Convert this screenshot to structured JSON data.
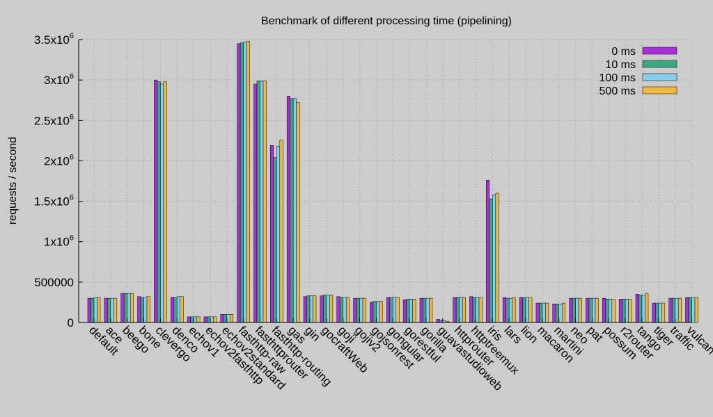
{
  "chart_data": {
    "type": "bar",
    "title": "Benchmark of different processing time (pipelining)",
    "xlabel": "",
    "ylabel": "requests / second",
    "ylim": [
      0,
      3500000
    ],
    "grid": true,
    "legend_position": "top-right",
    "yticks": [
      {
        "value": 0,
        "label": "0",
        "exp": ""
      },
      {
        "value": 500000,
        "label": "500000",
        "exp": ""
      },
      {
        "value": 1000000,
        "label": "1x10",
        "exp": "6"
      },
      {
        "value": 1500000,
        "label": "1.5x10",
        "exp": "6"
      },
      {
        "value": 2000000,
        "label": "2x10",
        "exp": "6"
      },
      {
        "value": 2500000,
        "label": "2.5x10",
        "exp": "6"
      },
      {
        "value": 3000000,
        "label": "3x10",
        "exp": "6"
      },
      {
        "value": 3500000,
        "label": "3.5x10",
        "exp": "6"
      }
    ],
    "categories": [
      "default",
      "ace",
      "beego",
      "bone",
      "clevergo",
      "denco",
      "echov1",
      "echov2fasthttp",
      "echov2standard",
      "fasthttp-raw",
      "fasthttprouter",
      "fasthttp-routing",
      "gas",
      "gin",
      "gocraftWeb",
      "goji",
      "gojiv2",
      "gojsonrest",
      "gongular",
      "gorestful",
      "gorilla",
      "guavastudioweb",
      "httprouter",
      "httptreemux",
      "iris",
      "lars",
      "lion",
      "macaron",
      "martini",
      "neo",
      "pat",
      "possum",
      "r2router",
      "tango",
      "tiger",
      "traffic",
      "vulcan"
    ],
    "series": [
      {
        "name": "0 ms",
        "color": "#a830d8",
        "values": [
          300000,
          300000,
          360000,
          320000,
          3000000,
          310000,
          70000,
          70000,
          100000,
          3450000,
          2950000,
          2190000,
          2800000,
          320000,
          330000,
          320000,
          300000,
          250000,
          310000,
          280000,
          300000,
          40000,
          310000,
          320000,
          1760000,
          310000,
          310000,
          240000,
          230000,
          300000,
          300000,
          300000,
          290000,
          350000,
          240000,
          300000,
          310000
        ]
      },
      {
        "name": "10 ms",
        "color": "#3aa882",
        "values": [
          300000,
          300000,
          360000,
          310000,
          2980000,
          310000,
          70000,
          70000,
          100000,
          3460000,
          2990000,
          2040000,
          2770000,
          330000,
          340000,
          310000,
          300000,
          260000,
          310000,
          290000,
          300000,
          25000,
          310000,
          310000,
          1530000,
          300000,
          310000,
          240000,
          230000,
          300000,
          300000,
          290000,
          290000,
          340000,
          240000,
          300000,
          310000
        ]
      },
      {
        "name": "100 ms",
        "color": "#88ccee",
        "values": [
          310000,
          300000,
          360000,
          310000,
          2950000,
          320000,
          70000,
          70000,
          100000,
          3470000,
          2990000,
          2180000,
          2770000,
          330000,
          340000,
          310000,
          300000,
          260000,
          310000,
          290000,
          300000,
          20000,
          310000,
          310000,
          1580000,
          300000,
          310000,
          240000,
          230000,
          300000,
          300000,
          290000,
          290000,
          340000,
          240000,
          300000,
          310000
        ]
      },
      {
        "name": "500 ms",
        "color": "#f0b840",
        "values": [
          310000,
          300000,
          360000,
          320000,
          2980000,
          320000,
          70000,
          70000,
          100000,
          3480000,
          2990000,
          2260000,
          2720000,
          330000,
          340000,
          310000,
          300000,
          260000,
          310000,
          290000,
          300000,
          15000,
          310000,
          310000,
          1600000,
          310000,
          310000,
          240000,
          240000,
          300000,
          300000,
          290000,
          290000,
          360000,
          240000,
          300000,
          310000
        ]
      }
    ]
  }
}
